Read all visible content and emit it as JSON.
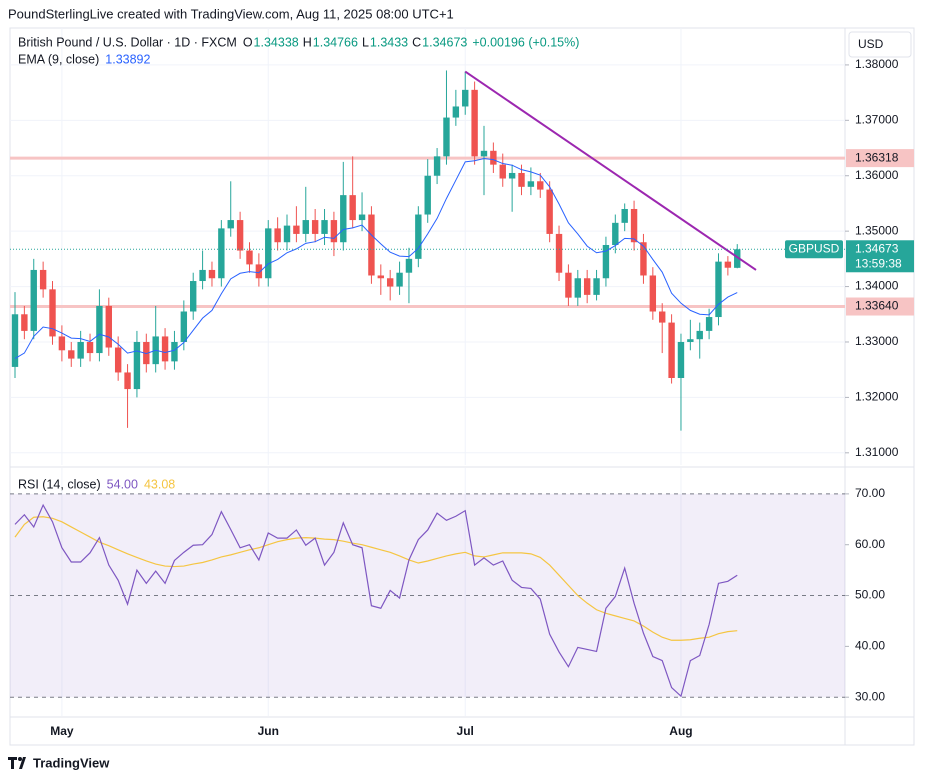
{
  "header": "PoundSterlingLive created with TradingView.com, Aug 11, 2025 08:00 UTC+1",
  "footer": "TradingView",
  "chart_data": {
    "type": "candlestick",
    "title": "British Pound / U.S. Dollar · 1D · FXCM",
    "legend_labels": [
      "O",
      "H",
      "L",
      "C"
    ],
    "change": "+0.00196 (+0.15%)",
    "currency": "USD",
    "symbol": "GBPUSD",
    "countdown": "13:59:38",
    "up_color": "#26a69a",
    "down_color": "#ef5350",
    "grid": true,
    "categories": [
      null,
      null,
      null,
      null,
      null,
      "May",
      null,
      null,
      null,
      null,
      null,
      null,
      null,
      null,
      null,
      null,
      null,
      null,
      null,
      null,
      null,
      null,
      null,
      null,
      null,
      null,
      null,
      "Jun",
      null,
      null,
      null,
      null,
      null,
      null,
      null,
      null,
      null,
      null,
      null,
      null,
      null,
      null,
      null,
      null,
      null,
      null,
      null,
      null,
      "Jul",
      null,
      null,
      null,
      null,
      null,
      null,
      null,
      null,
      null,
      null,
      null,
      null,
      null,
      null,
      null,
      null,
      null,
      null,
      null,
      null,
      null,
      null,
      "Aug",
      null,
      null,
      null,
      null,
      null,
      null
    ],
    "open": [
      1.3255,
      1.335,
      1.332,
      1.343,
      1.3395,
      1.331,
      1.3285,
      1.327,
      1.33,
      1.328,
      1.3365,
      1.329,
      1.3245,
      1.3215,
      1.33,
      1.326,
      1.331,
      1.3265,
      1.33,
      1.3355,
      1.341,
      1.343,
      1.3415,
      1.3505,
      1.352,
      1.3465,
      1.344,
      1.3415,
      1.3505,
      1.348,
      1.351,
      1.3495,
      1.352,
      1.3495,
      1.352,
      1.348,
      1.3565,
      1.352,
      1.353,
      1.342,
      1.3415,
      1.34,
      1.3425,
      1.345,
      1.353,
      1.36,
      1.3635,
      1.3705,
      1.3725,
      1.3755,
      1.3635,
      1.3645,
      1.362,
      1.3595,
      1.3605,
      1.358,
      1.359,
      1.3575,
      1.3495,
      1.3425,
      1.338,
      1.3415,
      1.3385,
      1.3415,
      1.3475,
      1.3515,
      1.354,
      1.348,
      1.342,
      1.3355,
      1.3335,
      1.3235,
      1.33,
      1.3305,
      1.332,
      1.3345,
      1.3445,
      1.34338
    ],
    "high": [
      1.339,
      1.3365,
      1.345,
      1.3445,
      1.341,
      1.333,
      1.33,
      1.332,
      1.3315,
      1.3395,
      1.338,
      1.331,
      1.326,
      1.332,
      1.3315,
      1.3365,
      1.3325,
      1.332,
      1.3375,
      1.3425,
      1.3465,
      1.3445,
      1.352,
      1.359,
      1.3535,
      1.348,
      1.346,
      1.352,
      1.3525,
      1.353,
      1.3545,
      1.358,
      1.354,
      1.354,
      1.3535,
      1.3625,
      1.3635,
      1.357,
      1.3545,
      1.344,
      1.343,
      1.3445,
      1.347,
      1.3545,
      1.363,
      1.365,
      1.379,
      1.3755,
      1.3788,
      1.377,
      1.369,
      1.366,
      1.364,
      1.362,
      1.362,
      1.3615,
      1.3605,
      1.359,
      1.351,
      1.344,
      1.343,
      1.343,
      1.343,
      1.349,
      1.353,
      1.355,
      1.3555,
      1.3495,
      1.3435,
      1.337,
      1.335,
      1.3315,
      1.334,
      1.3335,
      1.336,
      1.346,
      1.3455,
      1.34766
    ],
    "low": [
      1.3235,
      1.3305,
      1.3305,
      1.338,
      1.3295,
      1.3265,
      1.3255,
      1.3255,
      1.3265,
      1.3265,
      1.3275,
      1.323,
      1.3145,
      1.32,
      1.3245,
      1.3245,
      1.325,
      1.325,
      1.3285,
      1.334,
      1.3395,
      1.34,
      1.34,
      1.349,
      1.345,
      1.3425,
      1.34,
      1.34,
      1.3465,
      1.3465,
      1.348,
      1.348,
      1.348,
      1.3475,
      1.3455,
      1.3465,
      1.3505,
      1.35,
      1.3405,
      1.3385,
      1.3375,
      1.3385,
      1.337,
      1.3435,
      1.3515,
      1.3585,
      1.362,
      1.369,
      1.371,
      1.362,
      1.3565,
      1.3605,
      1.358,
      1.3535,
      1.3565,
      1.3565,
      1.356,
      1.348,
      1.341,
      1.3365,
      1.3365,
      1.337,
      1.3375,
      1.34,
      1.346,
      1.35,
      1.3465,
      1.3405,
      1.334,
      1.328,
      1.3225,
      1.314,
      1.3285,
      1.327,
      1.3305,
      1.333,
      1.342,
      1.3433
    ],
    "close": [
      1.335,
      1.332,
      1.343,
      1.3395,
      1.331,
      1.3285,
      1.327,
      1.33,
      1.328,
      1.3365,
      1.329,
      1.3245,
      1.3215,
      1.33,
      1.326,
      1.331,
      1.3265,
      1.33,
      1.3355,
      1.341,
      1.343,
      1.3415,
      1.3505,
      1.352,
      1.3465,
      1.344,
      1.3415,
      1.3505,
      1.348,
      1.351,
      1.3495,
      1.352,
      1.3495,
      1.352,
      1.348,
      1.3565,
      1.352,
      1.353,
      1.342,
      1.3415,
      1.34,
      1.3425,
      1.345,
      1.353,
      1.36,
      1.3635,
      1.3705,
      1.3725,
      1.3755,
      1.3635,
      1.3645,
      1.362,
      1.3595,
      1.3605,
      1.358,
      1.359,
      1.3575,
      1.3495,
      1.3425,
      1.338,
      1.3415,
      1.3385,
      1.3415,
      1.3475,
      1.3515,
      1.354,
      1.348,
      1.342,
      1.3355,
      1.3335,
      1.3235,
      1.33,
      1.3305,
      1.332,
      1.3345,
      1.3445,
      1.3434,
      1.34673
    ],
    "ema_label": "EMA (9, close)",
    "ema_color": "#2962ff",
    "ema": [
      1.327,
      1.328,
      1.331,
      1.3327,
      1.3324,
      1.3316,
      1.3307,
      1.3306,
      1.3301,
      1.3314,
      1.3309,
      1.3296,
      1.328,
      1.3284,
      1.3279,
      1.3285,
      1.3281,
      1.3285,
      1.3299,
      1.3321,
      1.3343,
      1.3357,
      1.3387,
      1.3414,
      1.3424,
      1.3427,
      1.3425,
      1.3441,
      1.3449,
      1.3461,
      1.3468,
      1.3478,
      1.3481,
      1.3489,
      1.3487,
      1.3503,
      1.3506,
      1.3511,
      1.3493,
      1.3477,
      1.3462,
      1.3455,
      1.3454,
      1.3469,
      1.3495,
      1.3523,
      1.3559,
      1.3592,
      1.3625,
      1.3627,
      1.3631,
      1.3629,
      1.3622,
      1.3619,
      1.3611,
      1.3607,
      1.3601,
      1.358,
      1.3549,
      1.3515,
      1.3495,
      1.3473,
      1.3461,
      1.3464,
      1.3474,
      1.3487,
      1.3486,
      1.3473,
      1.3449,
      1.3426,
      1.3388,
      1.337,
      1.3357,
      1.335,
      1.3349,
      1.3368,
      1.3381,
      1.33892
    ],
    "ylim": [
      1.3078,
      1.3863
    ],
    "yticks": [
      {
        "value": 1.38,
        "label": "1.38000"
      },
      {
        "value": 1.37,
        "label": "1.37000"
      },
      {
        "value": 1.36,
        "label": "1.36000"
      },
      {
        "value": 1.35,
        "label": "1.35000"
      },
      {
        "value": 1.34,
        "label": "1.34000"
      },
      {
        "value": 1.33,
        "label": "1.33000"
      },
      {
        "value": 1.32,
        "label": "1.32000"
      },
      {
        "value": 1.31,
        "label": "1.31000"
      }
    ],
    "levels": [
      1.36318,
      {
        "value": 1.3364,
        "label": "1.33640"
      }
    ],
    "level_color": "#f7c4c4",
    "trendline": {
      "x": [
        48,
        79
      ],
      "y": [
        1.3788,
        1.343
      ],
      "color": "#9c27b0"
    },
    "rsi": {
      "label": "RSI (14, close)",
      "color": "#7e57c2",
      "values": [
        64.0,
        65.9,
        63.5,
        67.8,
        64.5,
        59.4,
        56.6,
        56.6,
        58.4,
        61.4,
        56.0,
        53.0,
        48.3,
        55.0,
        52.4,
        54.8,
        52.4,
        56.9,
        58.5,
        59.9,
        60.0,
        62.0,
        66.5,
        63.0,
        59.4,
        60.0,
        57.0,
        62.3,
        61.3,
        61.3,
        62.9,
        59.9,
        61.3,
        56.0,
        58.5,
        64.3,
        60.0,
        59.4,
        48.0,
        47.5,
        51.0,
        49.5,
        57.0,
        61.0,
        62.9,
        66.2,
        64.8,
        65.6,
        66.7,
        56.0,
        57.4,
        56.0,
        56.8,
        53.0,
        51.6,
        51.4,
        49.3,
        42.4,
        38.9,
        36.0,
        39.8,
        39.4,
        39.0,
        47.5,
        49.8,
        55.4,
        48.5,
        42.6,
        38.0,
        37.2,
        31.9,
        30.2,
        37.2,
        38.2,
        44.3,
        52.4,
        52.8,
        54.0
      ],
      "value_label": "54.00",
      "ma_color": "#f5c542",
      "ma": [
        61.5,
        64.0,
        65.4,
        65.5,
        65.2,
        64.5,
        63.5,
        62.5,
        61.5,
        60.5,
        59.8,
        59.0,
        58.2,
        57.5,
        56.8,
        56.2,
        55.8,
        55.7,
        55.8,
        56.2,
        56.5,
        57.0,
        57.6,
        58.0,
        58.5,
        59.0,
        59.4,
        60.0,
        60.6,
        61.0,
        61.3,
        61.4,
        61.3,
        61.1,
        61.0,
        60.7,
        60.3,
        60.0,
        59.5,
        59.0,
        58.5,
        57.8,
        57.0,
        56.4,
        56.8,
        57.3,
        57.8,
        58.2,
        58.5,
        57.8,
        57.6,
        58.0,
        58.4,
        58.4,
        58.4,
        58.2,
        57.5,
        56.0,
        54.0,
        52.0,
        50.0,
        48.5,
        47.2,
        46.5,
        46.0,
        45.5,
        45.0,
        44.0,
        42.8,
        41.8,
        41.2,
        41.2,
        41.3,
        41.6,
        41.8,
        42.5,
        42.9,
        43.08
      ],
      "ylim": [
        26.3,
        74.7
      ],
      "yticks": [
        {
          "value": 70,
          "label": "70.00"
        },
        {
          "value": 60,
          "label": "60.00"
        },
        {
          "value": 50,
          "label": "50.00"
        },
        {
          "value": 40,
          "label": "40.00"
        },
        {
          "value": 30,
          "label": "30.00"
        }
      ],
      "levels": [
        70,
        50,
        30
      ]
    }
  }
}
